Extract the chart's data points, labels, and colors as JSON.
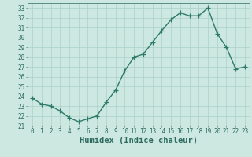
{
  "x": [
    0,
    1,
    2,
    3,
    4,
    5,
    6,
    7,
    8,
    9,
    10,
    11,
    12,
    13,
    14,
    15,
    16,
    17,
    18,
    19,
    20,
    21,
    22,
    23
  ],
  "y": [
    23.8,
    23.2,
    23.0,
    22.5,
    21.8,
    21.4,
    21.7,
    22.0,
    23.4,
    24.6,
    26.6,
    28.0,
    28.3,
    29.5,
    30.7,
    31.8,
    32.5,
    32.2,
    32.2,
    33.0,
    30.4,
    29.0,
    26.8,
    27.0
  ],
  "line_color": "#2d7a6a",
  "marker": "+",
  "marker_size": 4,
  "bg_color": "#cce8e0",
  "grid_color": "#aad0c8",
  "xlabel": "Humidex (Indice chaleur)",
  "xlim": [
    -0.5,
    23.5
  ],
  "ylim": [
    21,
    33.5
  ],
  "yticks": [
    21,
    22,
    23,
    24,
    25,
    26,
    27,
    28,
    29,
    30,
    31,
    32,
    33
  ],
  "xticks": [
    0,
    1,
    2,
    3,
    4,
    5,
    6,
    7,
    8,
    9,
    10,
    11,
    12,
    13,
    14,
    15,
    16,
    17,
    18,
    19,
    20,
    21,
    22,
    23
  ],
  "tick_color": "#2d6b5e",
  "tick_label_fontsize": 5.5,
  "xlabel_fontsize": 7.5,
  "linewidth": 1.0
}
